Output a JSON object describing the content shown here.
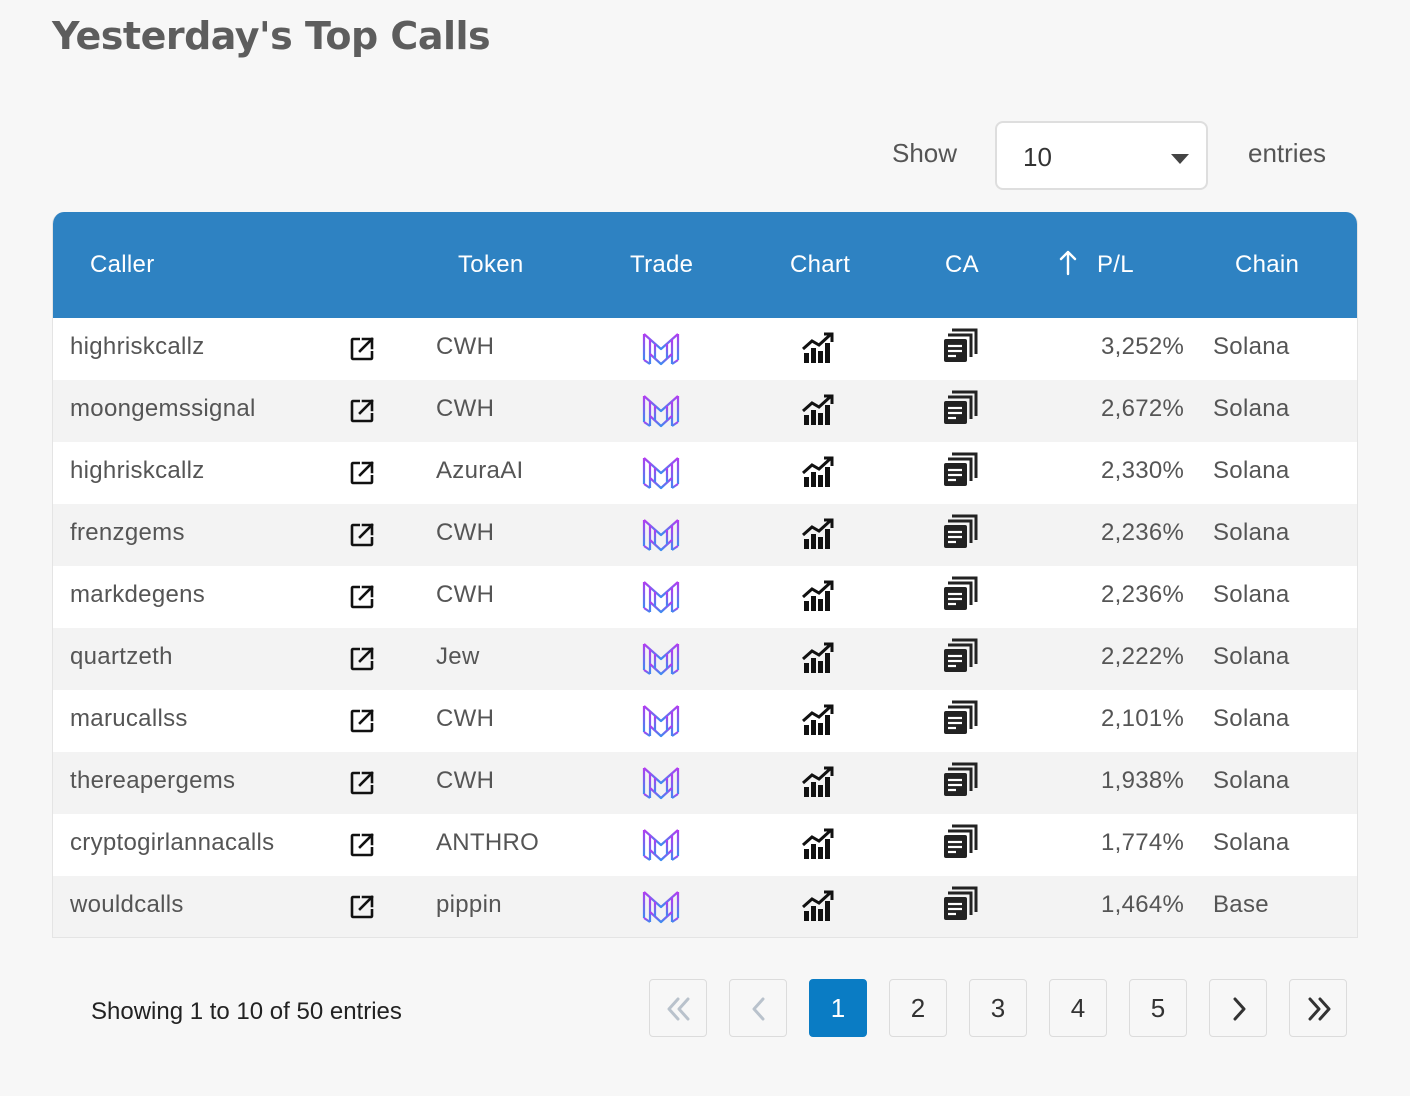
{
  "page": {
    "title": "Yesterday's Top Calls"
  },
  "length_control": {
    "show_label": "Show",
    "selected": "10",
    "entries_label": "entries"
  },
  "table": {
    "headers": {
      "caller": "Caller",
      "token": "Token",
      "trade": "Trade",
      "chart": "Chart",
      "ca": "CA",
      "pl": "P/L",
      "chain": "Chain"
    },
    "sort": {
      "column": "P/L",
      "icon": "arrow-up-icon"
    },
    "row_icons": {
      "external": "external-link-icon",
      "trade": "trade-logo-icon",
      "chart": "chart-growth-icon",
      "ca": "copy-icon"
    },
    "rows": [
      {
        "caller": "highriskcallz",
        "token": "CWH",
        "pl": "3,252%",
        "chain": "Solana"
      },
      {
        "caller": "moongemssignal",
        "token": "CWH",
        "pl": "2,672%",
        "chain": "Solana"
      },
      {
        "caller": "highriskcallz",
        "token": "AzuraAI",
        "pl": "2,330%",
        "chain": "Solana"
      },
      {
        "caller": "frenzgems",
        "token": "CWH",
        "pl": "2,236%",
        "chain": "Solana"
      },
      {
        "caller": "markdegens",
        "token": "CWH",
        "pl": "2,236%",
        "chain": "Solana"
      },
      {
        "caller": "quartzeth",
        "token": "Jew",
        "pl": "2,222%",
        "chain": "Solana"
      },
      {
        "caller": "marucallss",
        "token": "CWH",
        "pl": "2,101%",
        "chain": "Solana"
      },
      {
        "caller": "thereapergems",
        "token": "CWH",
        "pl": "1,938%",
        "chain": "Solana"
      },
      {
        "caller": "cryptogirlannacalls",
        "token": "ANTHRO",
        "pl": "1,774%",
        "chain": "Solana"
      },
      {
        "caller": "wouldcalls",
        "token": "pippin",
        "pl": "1,464%",
        "chain": "Base"
      }
    ]
  },
  "footer": {
    "info": "Showing 1 to 10 of 50 entries",
    "pagination": {
      "pages": [
        "1",
        "2",
        "3",
        "4",
        "5"
      ],
      "current": "1",
      "first_icon": "double-chevron-left-icon",
      "prev_icon": "chevron-left-icon",
      "next_icon": "chevron-right-icon",
      "last_icon": "double-chevron-right-icon"
    }
  },
  "colors": {
    "header_bg": "#2e82c2",
    "active_page": "#0a7cc4",
    "trade_gradient_top": "#b43cf0",
    "trade_gradient_bottom": "#3c8cf0"
  }
}
